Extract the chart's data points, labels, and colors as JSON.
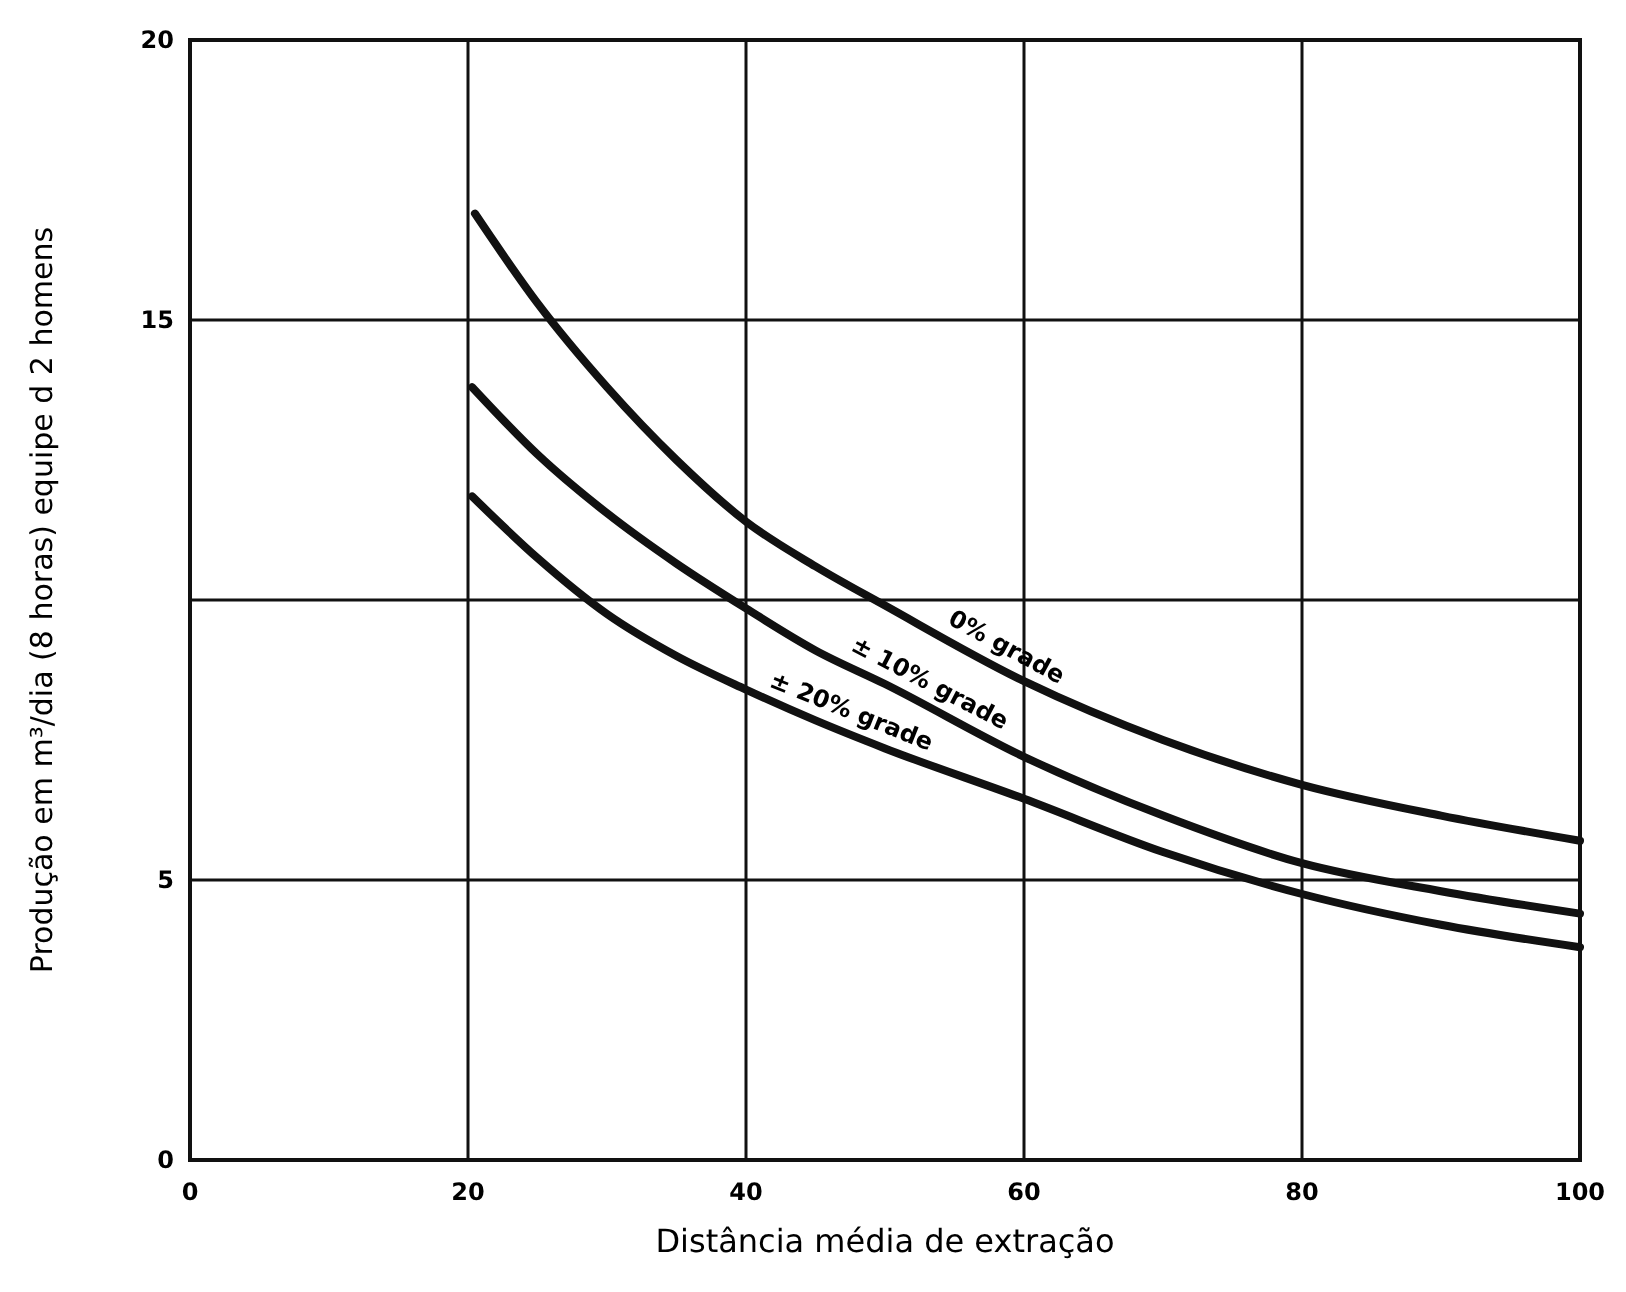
{
  "chart_data": {
    "type": "line",
    "xlabel": "Distância média de extração",
    "ylabel": "Produção em m³/dia (8 horas) equipe d  2 homens",
    "xlim": [
      0,
      100
    ],
    "xticks": [
      0,
      20,
      40,
      60,
      80,
      100
    ],
    "ylim": [
      0,
      20
    ],
    "yticks": [
      0,
      5,
      {
        "value": 10,
        "label": null
      },
      15,
      20
    ],
    "grid": true,
    "marker": "none",
    "line_style": "solid",
    "series": [
      {
        "color": "#111111",
        "x": [
          20.5,
          25,
          30,
          35,
          40,
          45,
          50,
          60,
          70,
          80,
          90,
          100
        ],
        "values": [
          16.9,
          15.3,
          13.8,
          12.5,
          11.4,
          10.6,
          9.9,
          8.55,
          7.5,
          6.7,
          6.15,
          5.7
        ]
      },
      {
        "color": "#111111",
        "x": [
          20.3,
          25,
          30,
          35,
          40,
          45,
          50,
          60,
          70,
          80,
          90,
          100
        ],
        "values": [
          13.8,
          12.6,
          11.55,
          10.65,
          9.85,
          9.1,
          8.5,
          7.2,
          6.15,
          5.3,
          4.8,
          4.4
        ]
      },
      {
        "color": "#111111",
        "x": [
          20.3,
          25,
          30,
          35,
          40,
          45,
          50,
          60,
          70,
          80,
          90,
          100
        ],
        "values": [
          11.85,
          10.75,
          9.75,
          9.0,
          8.4,
          7.85,
          7.35,
          6.45,
          5.5,
          4.75,
          4.2,
          3.8
        ]
      }
    ],
    "annotations": [
      "0% grade",
      "± 10% grade",
      "± 20% grade"
    ]
  }
}
